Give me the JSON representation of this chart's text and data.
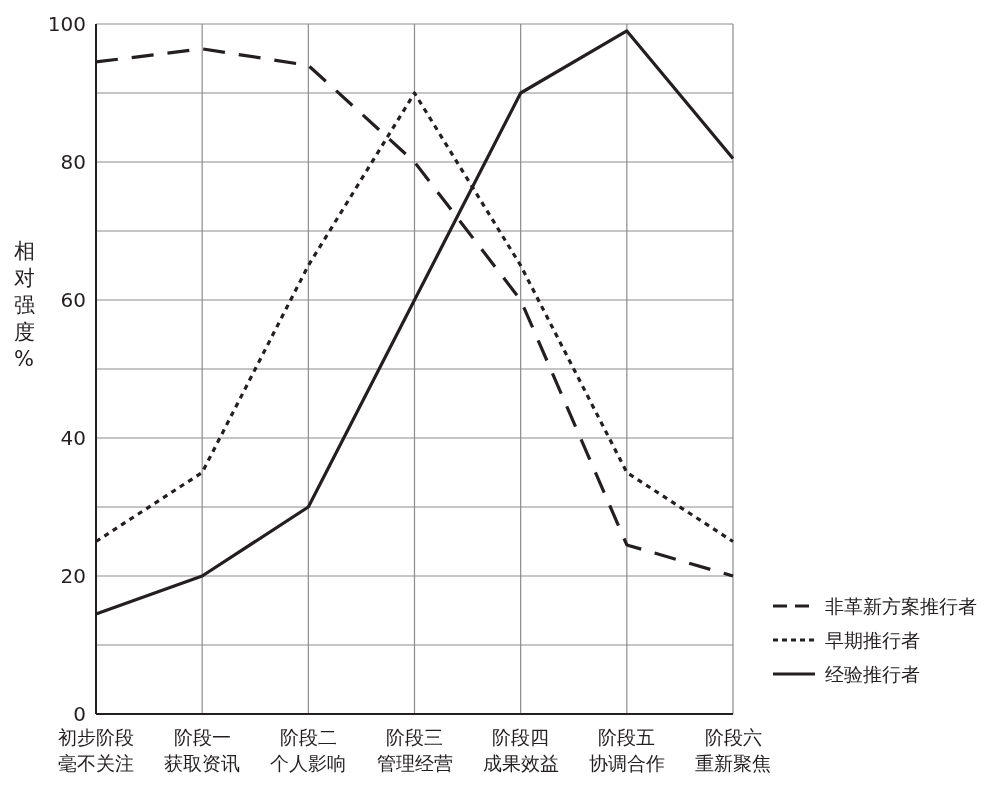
{
  "chart_data": {
    "type": "line",
    "ylabel": "相对强度%",
    "categories": [
      "初步阶段毫不关注",
      "阶段一获取资讯",
      "阶段二个人影响",
      "阶段三管理经营",
      "阶段四成果效益",
      "阶段五协调合作",
      "阶段六重新聚焦"
    ],
    "ylim": [
      0,
      100
    ],
    "yticks": [
      0,
      {
        "value": 10,
        "label": null
      },
      20,
      {
        "value": 30,
        "label": null
      },
      40,
      {
        "value": 50,
        "label": null
      },
      60,
      {
        "value": 70,
        "label": null
      },
      80,
      {
        "value": 90,
        "label": null
      },
      100
    ],
    "grid": true,
    "legend": "bottom right",
    "series": [
      {
        "name": "非革新方案推行者",
        "color": "#231f20",
        "line_style": "dashed",
        "values": [
          94.5,
          96.4,
          94,
          80,
          60,
          24.5,
          20
        ]
      },
      {
        "name": "早期推行者",
        "color": "#231f20",
        "line_style": "dotted",
        "values": [
          25,
          35,
          65,
          90,
          65,
          35,
          25
        ]
      },
      {
        "name": "经验推行者",
        "color": "#231f20",
        "line_style": "solid",
        "values": [
          14.5,
          20,
          30,
          60,
          90,
          99,
          80.5
        ]
      }
    ]
  }
}
